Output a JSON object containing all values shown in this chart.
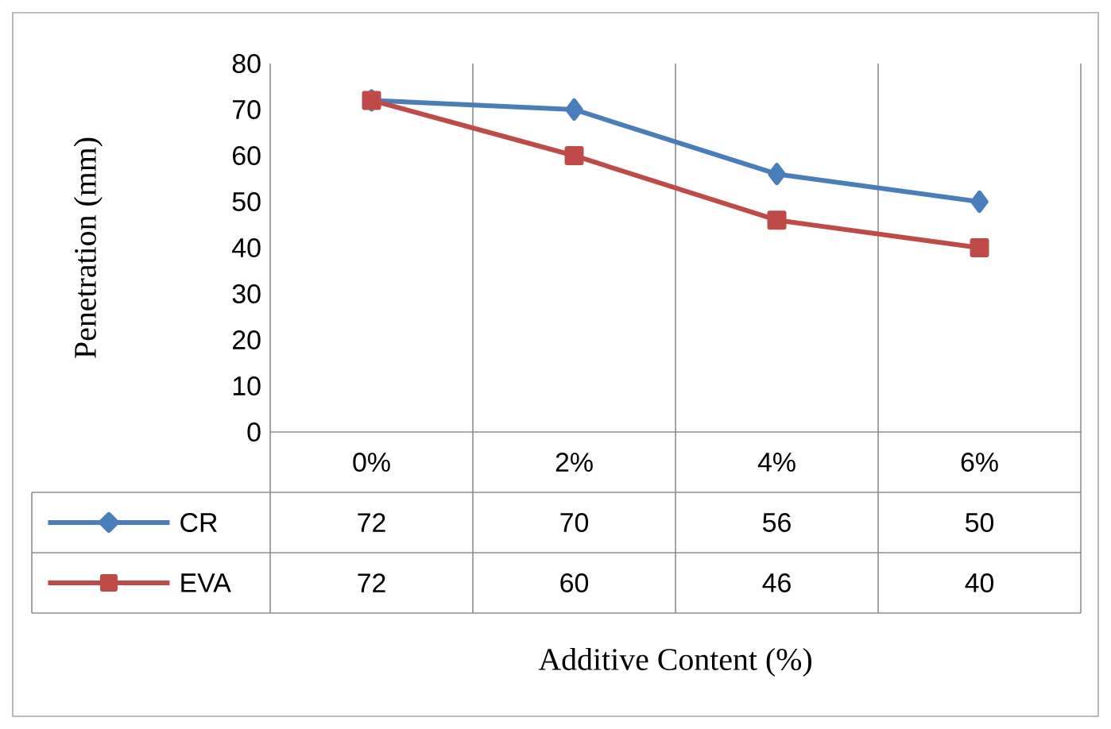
{
  "chart_data": {
    "type": "line",
    "annotations": [
      "Additive  Content (%)"
    ],
    "ylabel": "Penetration (mm)",
    "categories": [
      "0%",
      "2%",
      "4%",
      "6%"
    ],
    "series": [
      {
        "name": "CR",
        "color": "#4a7ebb",
        "marker": "diamond",
        "values": [
          72,
          70,
          56,
          50
        ]
      },
      {
        "name": "EVA",
        "color": "#be4b48",
        "marker": "square",
        "values": [
          72,
          60,
          46,
          40
        ]
      }
    ],
    "ylim": [
      0,
      80
    ],
    "yticks": [
      0,
      10,
      20,
      30,
      40,
      50,
      60,
      70,
      80
    ],
    "grid": "x",
    "legend": "bottom left",
    "data_labels": true,
    "line_style": "solid"
  }
}
